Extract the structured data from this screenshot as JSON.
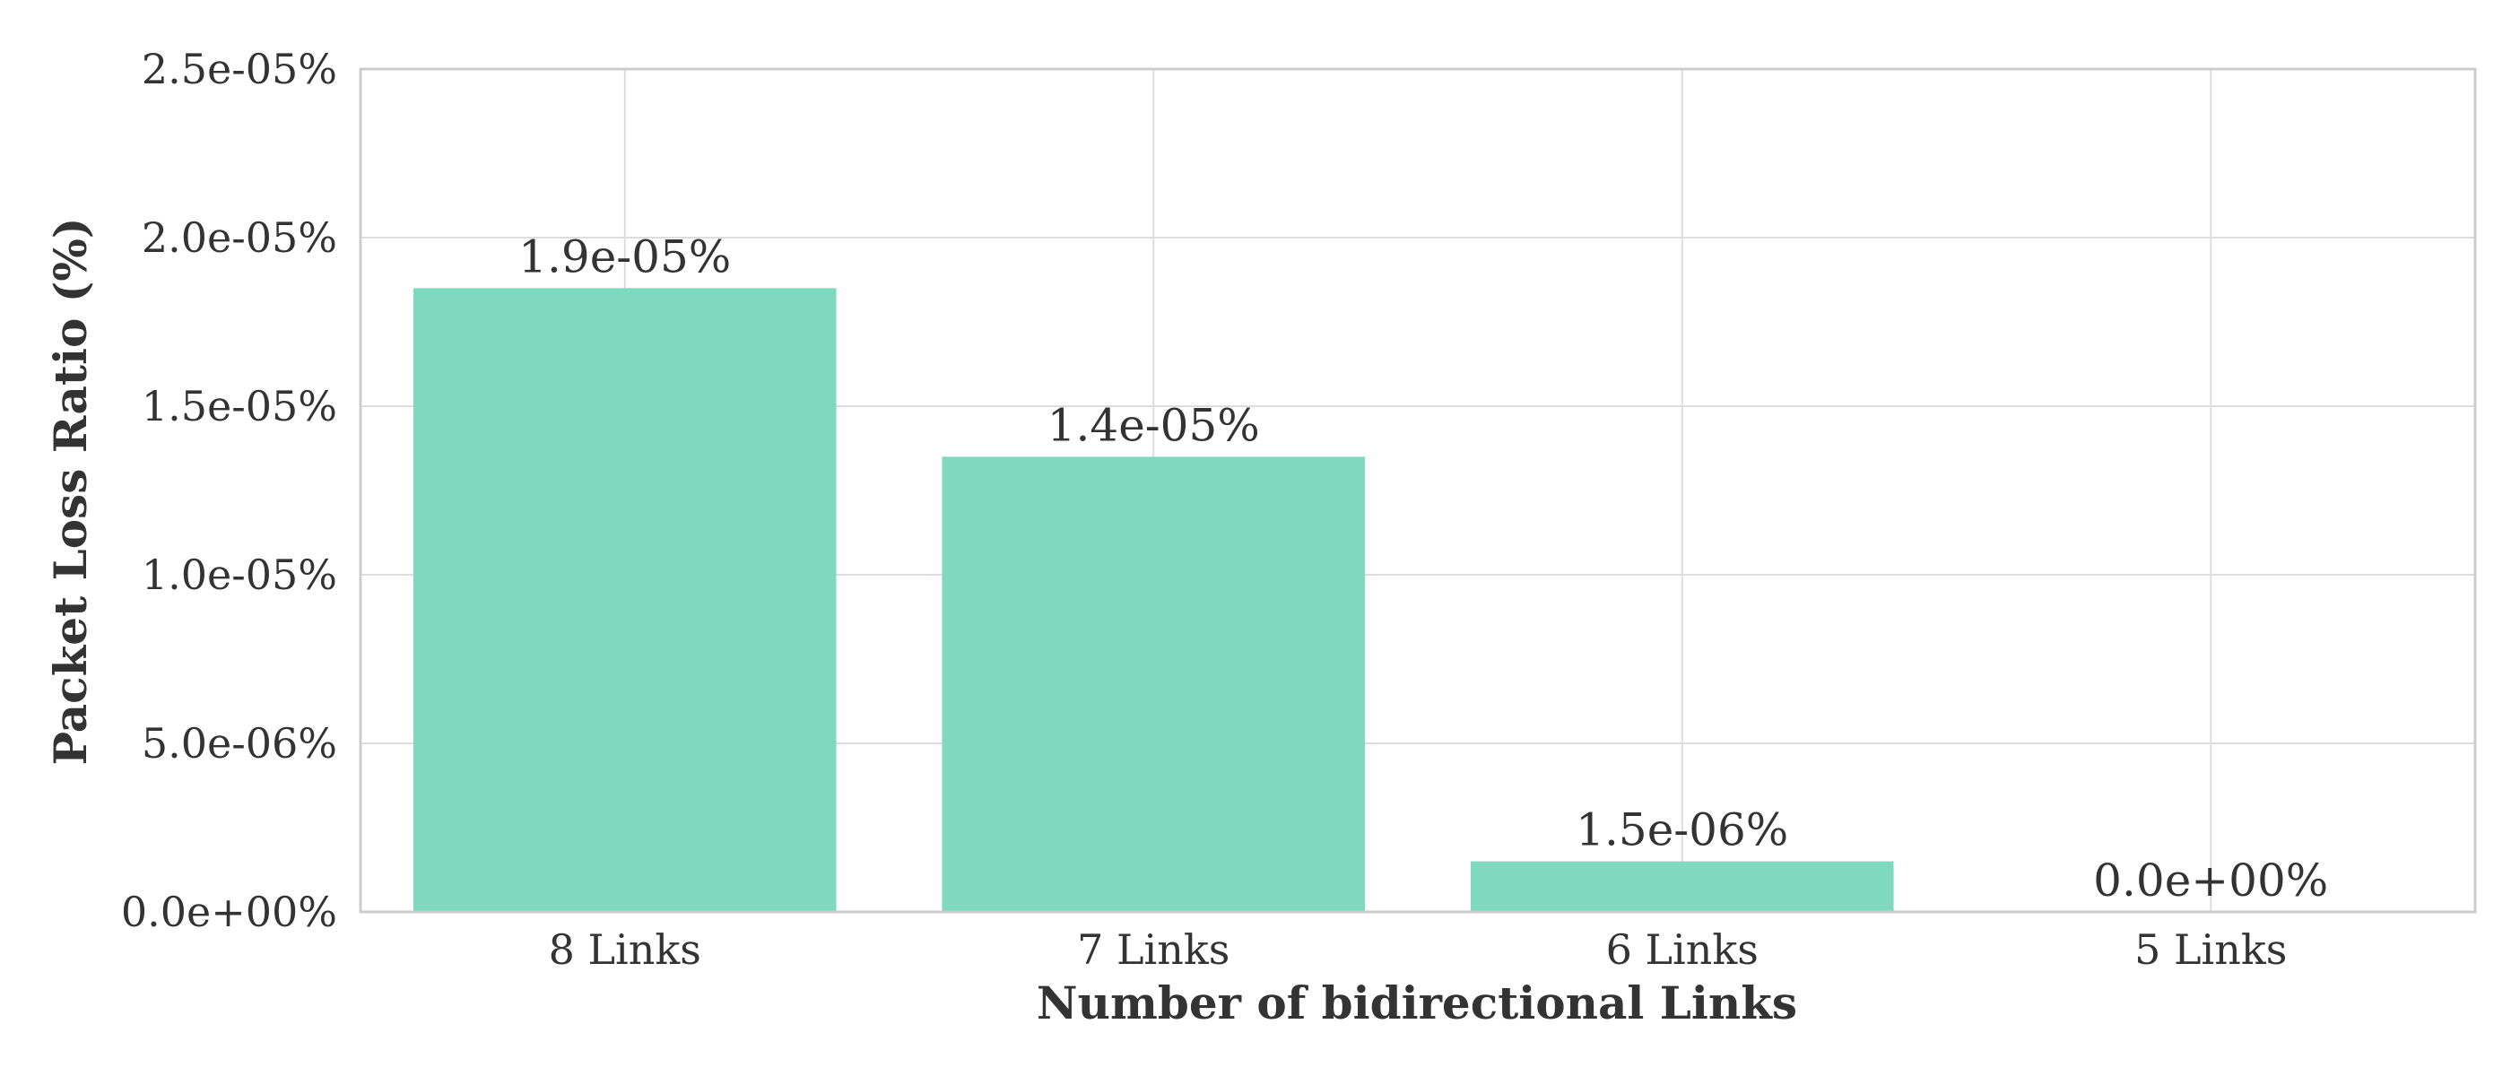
{
  "chart_data": {
    "type": "bar",
    "categories": [
      "8 Links",
      "7 Links",
      "6 Links",
      "5 Links"
    ],
    "values": [
      1.85e-05,
      1.35e-05,
      1.5e-06,
      0
    ],
    "value_labels": [
      "1.9e-05%",
      "1.4e-05%",
      "1.5e-06%",
      "0.0e+00%"
    ],
    "title": "",
    "xlabel": "Number of bidirectional Links",
    "ylabel": "Packet Loss Ratio (%)",
    "ylim": [
      0,
      2.5e-05
    ],
    "yticks": [
      0,
      5e-06,
      1e-05,
      1.5e-05,
      2e-05,
      2.5e-05
    ],
    "ytick_labels": [
      "0.0e+00%",
      "5.0e-06%",
      "1.0e-05%",
      "1.5e-05%",
      "2.0e-05%",
      "2.5e-05%"
    ],
    "grid": true,
    "bar_color": "#7fd9bf"
  }
}
